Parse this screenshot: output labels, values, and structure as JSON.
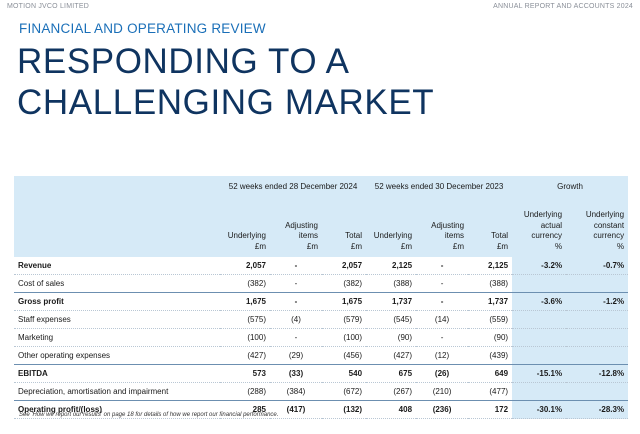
{
  "header": {
    "company": "MOTION JVCO LIMITED",
    "report": "ANNUAL REPORT AND ACCOUNTS 2024"
  },
  "section_title": "FINANCIAL AND OPERATING REVIEW",
  "headline": [
    "RESPONDING TO A",
    "CHALLENGING MARKET"
  ],
  "table": {
    "groups": [
      "52 weeks ended 28 December 2024",
      "52 weeks ended 30 December 2023",
      "Growth"
    ],
    "columns": [
      [
        "Underlying",
        "£m"
      ],
      [
        "Adjusting",
        "items",
        "£m"
      ],
      [
        "Total",
        "£m"
      ],
      [
        "Underlying",
        "£m"
      ],
      [
        "Adjusting",
        "items",
        "£m"
      ],
      [
        "Total",
        "£m"
      ],
      [
        "Underlying",
        "actual",
        "currency",
        "%"
      ],
      [
        "Underlying",
        "constant",
        "currency",
        "%"
      ]
    ],
    "rows": [
      {
        "label": "Revenue",
        "bold": true,
        "values": [
          "2,057",
          "-",
          "2,057",
          "2,125",
          "-",
          "2,125",
          "-3.2%",
          "-0.7%"
        ]
      },
      {
        "label": "Cost of sales",
        "bold": false,
        "values": [
          "(382)",
          "-",
          "(382)",
          "(388)",
          "-",
          "(388)",
          "",
          ""
        ]
      },
      {
        "label": "Gross profit",
        "bold": true,
        "values": [
          "1,675",
          "-",
          "1,675",
          "1,737",
          "-",
          "1,737",
          "-3.6%",
          "-1.2%"
        ]
      },
      {
        "label": "Staff expenses",
        "bold": false,
        "values": [
          "(575)",
          "(4)",
          "(579)",
          "(545)",
          "(14)",
          "(559)",
          "",
          ""
        ]
      },
      {
        "label": "Marketing",
        "bold": false,
        "values": [
          "(100)",
          "-",
          "(100)",
          "(90)",
          "-",
          "(90)",
          "",
          ""
        ]
      },
      {
        "label": "Other operating expenses",
        "bold": false,
        "values": [
          "(427)",
          "(29)",
          "(456)",
          "(427)",
          "(12)",
          "(439)",
          "",
          ""
        ]
      },
      {
        "label": "EBITDA",
        "bold": true,
        "values": [
          "573",
          "(33)",
          "540",
          "675",
          "(26)",
          "649",
          "-15.1%",
          "-12.8%"
        ]
      },
      {
        "label": "Depreciation, amortisation and impairment",
        "bold": false,
        "values": [
          "(288)",
          "(384)",
          "(672)",
          "(267)",
          "(210)",
          "(477)",
          "",
          ""
        ]
      },
      {
        "label": "Operating profit/(loss)",
        "bold": true,
        "values": [
          "285",
          "(417)",
          "(132)",
          "408",
          "(236)",
          "172",
          "-30.1%",
          "-28.3%"
        ]
      }
    ]
  },
  "footnote": "See 'How we report our results' on page 18 for details of how we report our financial performance."
}
